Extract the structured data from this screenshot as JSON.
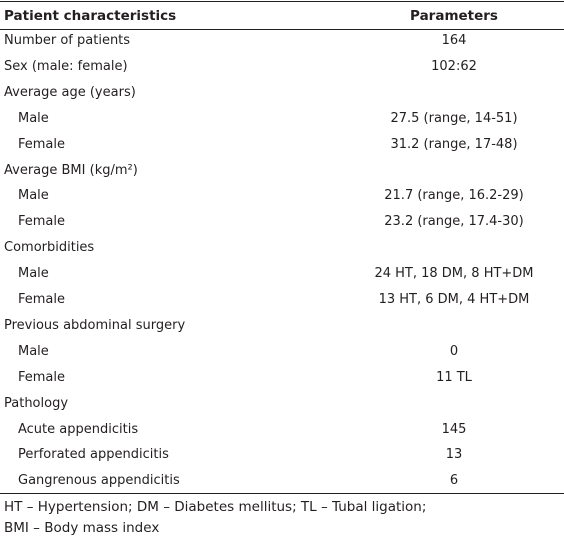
{
  "table": {
    "header": {
      "label": "Patient characteristics",
      "value": "Parameters"
    },
    "rows": [
      {
        "label": "Number of patients",
        "value": "164",
        "indent": false
      },
      {
        "label": "Sex (male: female)",
        "value": "102:62",
        "indent": false
      },
      {
        "label": "Average age (years)",
        "value": "",
        "indent": false
      },
      {
        "label": "Male",
        "value": "27.5 (range, 14-51)",
        "indent": true
      },
      {
        "label": "Female",
        "value": "31.2 (range, 17-48)",
        "indent": true
      },
      {
        "label": "Average BMI (kg/m²)",
        "value": "",
        "indent": false
      },
      {
        "label": "Male",
        "value": "21.7 (range, 16.2-29)",
        "indent": true
      },
      {
        "label": "Female",
        "value": "23.2 (range, 17.4-30)",
        "indent": true
      },
      {
        "label": "Comorbidities",
        "value": "",
        "indent": false
      },
      {
        "label": "Male",
        "value": "24 HT, 18 DM, 8 HT+DM",
        "indent": true
      },
      {
        "label": "Female",
        "value": "13 HT, 6 DM, 4 HT+DM",
        "indent": true
      },
      {
        "label": "Previous abdominal surgery",
        "value": "",
        "indent": false
      },
      {
        "label": "Male",
        "value": "0",
        "indent": true
      },
      {
        "label": "Female",
        "value": "11 TL",
        "indent": true
      },
      {
        "label": "Pathology",
        "value": "",
        "indent": false
      },
      {
        "label": "Acute appendicitis",
        "value": "145",
        "indent": true
      },
      {
        "label": "Perforated appendicitis",
        "value": "13",
        "indent": true
      },
      {
        "label": "Gangrenous appendicitis",
        "value": "6",
        "indent": true
      }
    ]
  },
  "footnote": {
    "line1": "HT – Hypertension; DM – Diabetes mellitus; TL – Tubal ligation;",
    "line2": "BMI – Body mass index"
  }
}
